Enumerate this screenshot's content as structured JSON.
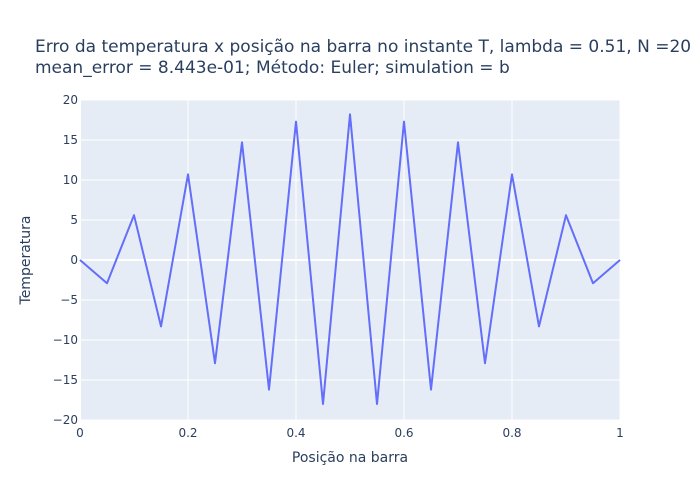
{
  "chart_data": {
    "type": "line",
    "title_lines": [
      "Erro da temperatura x posição na barra no instante T, lambda = 0.51, N =20",
      "mean_error = 8.443e-01; Método: Euler; simulation = b"
    ],
    "xlabel": "Posição na barra",
    "ylabel": "Temperatura",
    "xlim": [
      0,
      1
    ],
    "ylim": [
      -20,
      20
    ],
    "x_ticks": [
      0,
      0.2,
      0.4,
      0.6,
      0.8,
      1
    ],
    "x_tick_labels": [
      "0",
      "0.2",
      "0.4",
      "0.6",
      "0.8",
      "1"
    ],
    "y_ticks": [
      -20,
      -15,
      -10,
      -5,
      0,
      5,
      10,
      15,
      20
    ],
    "y_tick_labels": [
      "−20",
      "−15",
      "−10",
      "−5",
      "0",
      "5",
      "10",
      "15",
      "20"
    ],
    "grid": true,
    "series": [
      {
        "color": "#636efa",
        "x": [
          0,
          0.05,
          0.1,
          0.15,
          0.2,
          0.25,
          0.3,
          0.35,
          0.4,
          0.45,
          0.5,
          0.55,
          0.6,
          0.65,
          0.7,
          0.75,
          0.8,
          0.85,
          0.9,
          0.95,
          1
        ],
        "y": [
          0,
          -2.9,
          5.6,
          -8.3,
          10.7,
          -12.9,
          14.7,
          -16.2,
          17.3,
          -18.0,
          18.2,
          -18.0,
          17.3,
          -16.2,
          14.7,
          -12.9,
          10.7,
          -8.3,
          5.6,
          -2.9,
          0
        ]
      }
    ]
  }
}
